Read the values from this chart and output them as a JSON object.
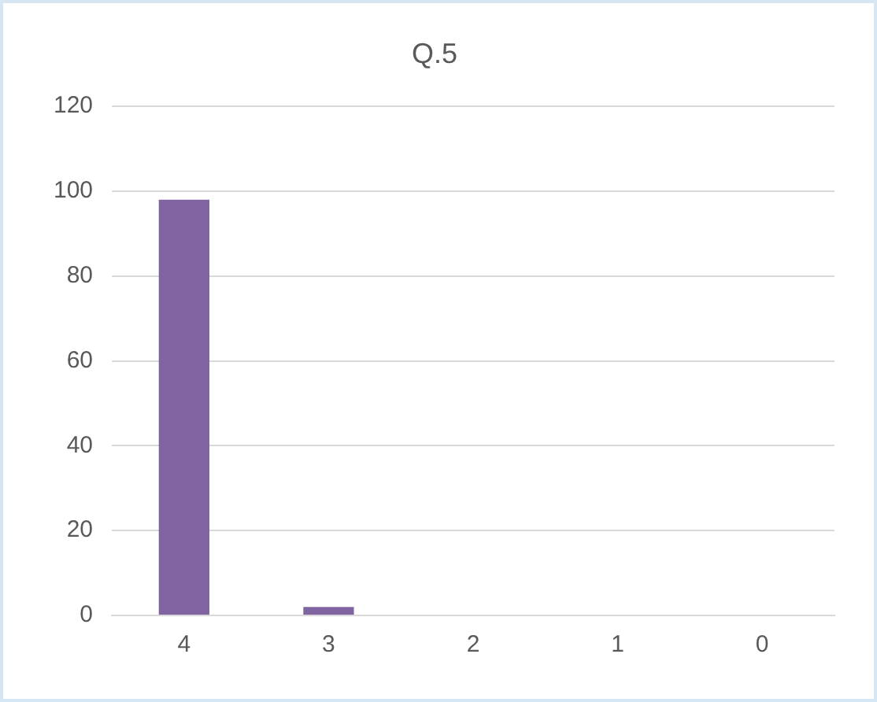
{
  "chart_data": {
    "type": "bar",
    "title": "Q.5",
    "categories": [
      "4",
      "3",
      "2",
      "1",
      "0"
    ],
    "values": [
      98,
      2,
      0,
      0,
      0
    ],
    "color": "#8064a2",
    "ylim": [
      0,
      120
    ],
    "yticks": [
      0,
      20,
      40,
      60,
      80,
      100,
      120
    ],
    "grid": "y",
    "legend": false
  }
}
